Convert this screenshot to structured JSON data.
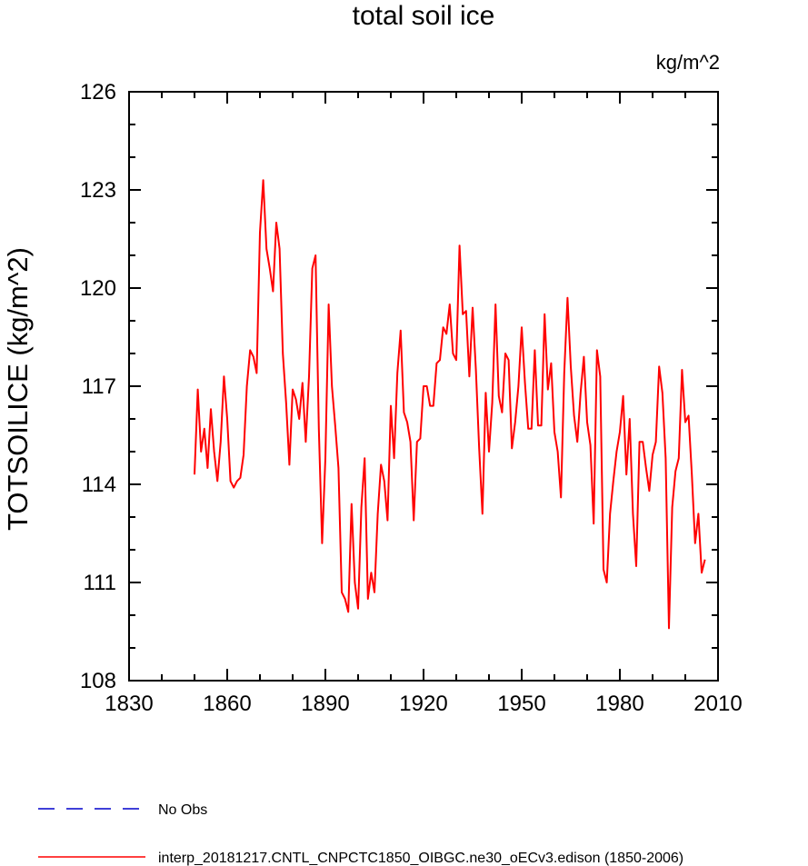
{
  "chart_data": {
    "type": "line",
    "title": "total soil ice",
    "units_label": "kg/m^2",
    "xlabel": "",
    "ylabel": "TOTSOILICE  (kg/m^2)",
    "xlim": [
      1830,
      2010
    ],
    "ylim": [
      108,
      126
    ],
    "x_ticks": [
      1830,
      1860,
      1890,
      1920,
      1950,
      1980,
      2010
    ],
    "x_tick_labels": [
      "1830",
      "1860",
      "1890",
      "1920",
      "1950",
      "1980",
      "2010"
    ],
    "y_ticks": [
      108,
      111,
      114,
      117,
      120,
      123,
      126
    ],
    "y_tick_labels": [
      "108",
      "111",
      "114",
      "117",
      "120",
      "123",
      "126"
    ],
    "grid": false,
    "legend_position": "bottom",
    "series": [
      {
        "name": "No Obs",
        "color": "#0000cc",
        "style": "dashed",
        "values": []
      },
      {
        "name": "interp_20181217.CNTL_CNPCTC1850_OIBGC.ne30_oECv3.edison (1850-2006)",
        "color": "#ff0000",
        "style": "solid",
        "x_start": 1850,
        "x_step": 1,
        "values": [
          114.3,
          116.9,
          115.0,
          115.7,
          114.5,
          116.3,
          115.0,
          114.1,
          115.3,
          117.3,
          116.0,
          114.1,
          113.9,
          114.1,
          114.2,
          114.9,
          117.0,
          118.1,
          117.9,
          117.4,
          121.7,
          123.3,
          121.2,
          120.6,
          119.9,
          122.0,
          121.2,
          118.0,
          116.5,
          114.6,
          116.9,
          116.6,
          116.0,
          117.1,
          115.3,
          117.3,
          120.6,
          121.0,
          115.7,
          112.2,
          114.8,
          119.5,
          117.0,
          115.8,
          114.5,
          110.7,
          110.5,
          110.1,
          113.4,
          111.0,
          110.2,
          113.3,
          114.8,
          110.5,
          111.3,
          110.7,
          113.1,
          114.6,
          114.1,
          112.9,
          116.4,
          114.8,
          117.4,
          118.7,
          116.2,
          115.9,
          115.3,
          112.9,
          115.3,
          115.4,
          117.0,
          117.0,
          116.4,
          116.4,
          117.7,
          117.8,
          118.8,
          118.6,
          119.5,
          118.0,
          117.8,
          121.3,
          119.2,
          119.3,
          117.3,
          119.4,
          117.5,
          115.1,
          113.1,
          116.8,
          115.0,
          116.5,
          119.5,
          116.7,
          116.2,
          118.0,
          117.8,
          115.1,
          115.9,
          117.0,
          118.8,
          117.1,
          115.7,
          115.7,
          118.1,
          115.8,
          115.8,
          119.2,
          116.9,
          117.7,
          115.6,
          115.0,
          113.6,
          117.4,
          119.7,
          117.6,
          116.1,
          115.3,
          116.8,
          117.9,
          115.9,
          115.2,
          112.8,
          118.1,
          117.3,
          111.4,
          111.0,
          113.1,
          114.1,
          115.0,
          115.6,
          116.7,
          114.3,
          116.0,
          113.1,
          111.5,
          115.3,
          115.3,
          114.5,
          113.8,
          114.9,
          115.3,
          117.6,
          116.8,
          114.8,
          109.6,
          113.3,
          114.4,
          114.8,
          117.5,
          115.9,
          116.1,
          114.3,
          112.2,
          113.1,
          111.3,
          111.7
        ]
      }
    ]
  }
}
